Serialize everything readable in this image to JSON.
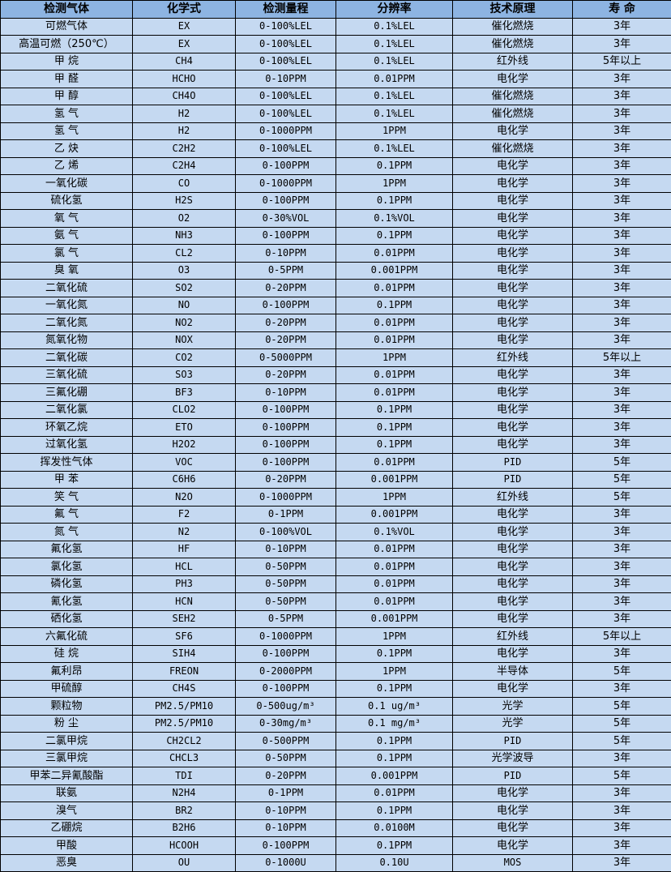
{
  "table": {
    "headers": [
      "检测气体",
      "化学式",
      "检测量程",
      "分辨率",
      "技术原理",
      "寿 命"
    ],
    "rows": [
      [
        "可燃气体",
        "EX",
        "0-100%LEL",
        "0.1%LEL",
        "催化燃烧",
        "3年"
      ],
      [
        "高温可燃（250℃）",
        "EX",
        "0-100%LEL",
        "0.1%LEL",
        "催化燃烧",
        "3年"
      ],
      [
        "甲 烷",
        "CH4",
        "0-100%LEL",
        "0.1%LEL",
        "红外线",
        "5年以上"
      ],
      [
        "甲 醛",
        "HCHO",
        "0-10PPM",
        "0.01PPM",
        "电化学",
        "3年"
      ],
      [
        "甲 醇",
        "CH4O",
        "0-100%LEL",
        "0.1%LEL",
        "催化燃烧",
        "3年"
      ],
      [
        "氢 气",
        "H2",
        "0-100%LEL",
        "0.1%LEL",
        "催化燃烧",
        "3年"
      ],
      [
        "氢 气",
        "H2",
        "0-1000PPM",
        "1PPM",
        "电化学",
        "3年"
      ],
      [
        "乙 炔",
        "C2H2",
        "0-100%LEL",
        "0.1%LEL",
        "催化燃烧",
        "3年"
      ],
      [
        "乙 烯",
        "C2H4",
        "0-100PPM",
        "0.1PPM",
        "电化学",
        "3年"
      ],
      [
        "一氧化碳",
        "CO",
        "0-1000PPM",
        "1PPM",
        "电化学",
        "3年"
      ],
      [
        "硫化氢",
        "H2S",
        "0-100PPM",
        "0.1PPM",
        "电化学",
        "3年"
      ],
      [
        "氧 气",
        "O2",
        "0-30%VOL",
        "0.1%VOL",
        "电化学",
        "3年"
      ],
      [
        "氨 气",
        "NH3",
        "0-100PPM",
        "0.1PPM",
        "电化学",
        "3年"
      ],
      [
        "氯 气",
        "CL2",
        "0-10PPM",
        "0.01PPM",
        "电化学",
        "3年"
      ],
      [
        "臭 氧",
        "O3",
        "0-5PPM",
        "0.001PPM",
        "电化学",
        "3年"
      ],
      [
        "二氧化硫",
        "SO2",
        "0-20PPM",
        "0.01PPM",
        "电化学",
        "3年"
      ],
      [
        "一氧化氮",
        "NO",
        "0-100PPM",
        "0.1PPM",
        "电化学",
        "3年"
      ],
      [
        "二氧化氮",
        "NO2",
        "0-20PPM",
        "0.01PPM",
        "电化学",
        "3年"
      ],
      [
        "氮氧化物",
        "NOX",
        "0-20PPM",
        "0.01PPM",
        "电化学",
        "3年"
      ],
      [
        "二氧化碳",
        "CO2",
        "0-5000PPM",
        "1PPM",
        "红外线",
        "5年以上"
      ],
      [
        "三氧化硫",
        "SO3",
        "0-20PPM",
        "0.01PPM",
        "电化学",
        "3年"
      ],
      [
        "三氟化硼",
        "BF3",
        "0-10PPM",
        "0.01PPM",
        "电化学",
        "3年"
      ],
      [
        "二氧化氯",
        "CLO2",
        "0-100PPM",
        "0.1PPM",
        "电化学",
        "3年"
      ],
      [
        "环氧乙烷",
        "ETO",
        "0-100PPM",
        "0.1PPM",
        "电化学",
        "3年"
      ],
      [
        "过氧化氢",
        "H2O2",
        "0-100PPM",
        "0.1PPM",
        "电化学",
        "3年"
      ],
      [
        "挥发性气体",
        "VOC",
        "0-100PPM",
        "0.01PPM",
        "PID",
        "5年"
      ],
      [
        "甲 苯",
        "C6H6",
        "0-20PPM",
        "0.001PPM",
        "PID",
        "5年"
      ],
      [
        "笑 气",
        "N2O",
        "0-1000PPM",
        "1PPM",
        "红外线",
        "5年"
      ],
      [
        "氟 气",
        "F2",
        "0-1PPM",
        "0.001PPM",
        "电化学",
        "3年"
      ],
      [
        "氮 气",
        "N2",
        "0-100%VOL",
        "0.1%VOL",
        "电化学",
        "3年"
      ],
      [
        "氟化氢",
        "HF",
        "0-10PPM",
        "0.01PPM",
        "电化学",
        "3年"
      ],
      [
        "氯化氢",
        "HCL",
        "0-50PPM",
        "0.01PPM",
        "电化学",
        "3年"
      ],
      [
        "磷化氢",
        "PH3",
        "0-50PPM",
        "0.01PPM",
        "电化学",
        "3年"
      ],
      [
        "氰化氢",
        "HCN",
        "0-50PPM",
        "0.01PPM",
        "电化学",
        "3年"
      ],
      [
        "硒化氢",
        "SEH2",
        "0-5PPM",
        "0.001PPM",
        "电化学",
        "3年"
      ],
      [
        "六氟化硫",
        "SF6",
        "0-1000PPM",
        "1PPM",
        "红外线",
        "5年以上"
      ],
      [
        "硅 烷",
        "SIH4",
        "0-100PPM",
        "0.1PPM",
        "电化学",
        "3年"
      ],
      [
        "氟利昂",
        "FREON",
        "0-2000PPM",
        "1PPM",
        "半导体",
        "5年"
      ],
      [
        "甲硫醇",
        "CH4S",
        "0-100PPM",
        "0.1PPM",
        "电化学",
        "3年"
      ],
      [
        "颗粒物",
        "PM2.5/PM10",
        "0-500ug/m³",
        "0.1 ug/m³",
        "光学",
        "5年"
      ],
      [
        "粉 尘",
        "PM2.5/PM10",
        "0-30mg/m³",
        "0.1 mg/m³",
        "光学",
        "5年"
      ],
      [
        "二氯甲烷",
        "CH2CL2",
        "0-500PPM",
        "0.1PPM",
        "PID",
        "5年"
      ],
      [
        "三氯甲烷",
        "CHCL3",
        "0-50PPM",
        "0.1PPM",
        "光学波导",
        "3年"
      ],
      [
        "甲苯二异氰酸酯",
        "TDI",
        "0-20PPM",
        "0.001PPM",
        "PID",
        "5年"
      ],
      [
        "联氨",
        "N2H4",
        "0-1PPM",
        "0.01PPM",
        "电化学",
        "3年"
      ],
      [
        "溴气",
        "BR2",
        "0-10PPM",
        "0.1PPM",
        "电化学",
        "3年"
      ],
      [
        "乙硼烷",
        "B2H6",
        "0-10PPM",
        "0.0100M",
        "电化学",
        "3年"
      ],
      [
        "甲酸",
        "HCOOH",
        "0-100PPM",
        "0.1PPM",
        "电化学",
        "3年"
      ],
      [
        "恶臭",
        "OU",
        "0-1000U",
        "0.10U",
        "MOS",
        "3年"
      ]
    ]
  },
  "colors": {
    "header_bg": "#8db4e2",
    "row_bg": "#c5d9f1",
    "border": "#000000"
  }
}
